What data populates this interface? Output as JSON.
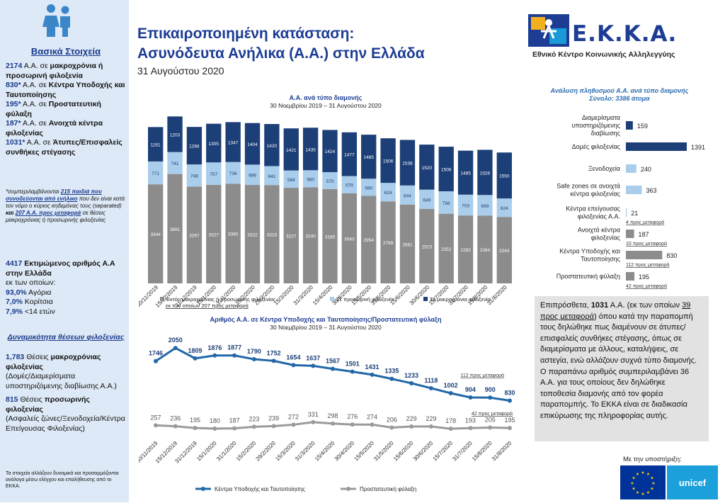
{
  "header": {
    "title_line1": "Επικαιροποιημένη κατάσταση:",
    "title_line2": "Ασυνόδευτα Ανήλικα (Α.Α.) στην Ελλάδα",
    "date": "31 Αυγούστου 2020"
  },
  "logo": {
    "name": "Ε.Κ.Κ.Α.",
    "subtitle": "Εθνικό Κέντρο Κοινωνικής Αλληλεγγύης"
  },
  "sidebar": {
    "heading": "Βασικά Στοιχεία",
    "facts": [
      {
        "num": "2174",
        "text": "Α.Α. σε ",
        "bold": "μακροχρόνια ή προσωρινή φιλοξενία"
      },
      {
        "num": "830*",
        "text": "Α.Α. σε ",
        "bold": "Κέντρα Υποδοχής και Ταυτοποίησης"
      },
      {
        "num": "195*",
        "text": "Α.Α. σε ",
        "bold": "Προστατευτική φύλαξη"
      },
      {
        "num": "187*",
        "text": "Α.Α. σε ",
        "bold": "Ανοιχτά κέντρα φιλοξενίας"
      },
      {
        "num": "1031*",
        "text": "Α.Α. σε ",
        "bold": "Άτυπες/Επισφαλείς συνθήκες στέγασης"
      }
    ],
    "footnote_pre": "*συμπεριλαμβάνονται ",
    "footnote_link1": "215 παιδιά που συνοδεύονται από ενήλικο",
    "footnote_mid": " που δεν είναι κατά τον νόμο ο κύριος κηδεμόνας τους (separated) ",
    "footnote_and": "και",
    "footnote_link2": "207 Α.Α. προς μεταφορά",
    "footnote_post": " σε θέσεις μακροχρόνιας ή προσωρινής φιλοξενίας",
    "estimate_num": "4417",
    "estimate_text": "Εκτιμώμενος αριθμός Α.Α στην Ελλάδα",
    "estimate_sub": "εκ των οποίων:",
    "pct": [
      {
        "num": "93,0%",
        "label": "Αγόρια"
      },
      {
        "num": "7,0%",
        "label": "Κορίτσια"
      },
      {
        "num": "7,9%",
        "label": "<14 ετών"
      }
    ],
    "capacity_heading": "Δυναμικότητα θέσεων φιλοξενίας",
    "cap1_num": "1,783",
    "cap1_text": " Θέσεις ",
    "cap1_bold": "μακροχρόνιας φιλοξενίας",
    "cap1_detail": "(Δομές/Διαμερίσματα υποστηριζόμενης διαβίωσης Α.Α.)",
    "cap2_num": "815",
    "cap2_text": " Θέσεις ",
    "cap2_bold": "προσωρινής φιλοξενίας",
    "cap2_detail": "(Ασφαλείς ζώνες/Ξενοδοχεία/Κέντρα Επείγουσας Φιλοξενίας)",
    "disclaimer": "Τα στοιχεία αλλάζουν δυναμικά και προσαρμόζονται ανάλογα μέσω ελέγχου και επαλήθευσης από το ΕΚΚΑ."
  },
  "infobox": {
    "pre": "Επιπρόσθετα, ",
    "num": "1031",
    "mid": " Α.Α. (εκ των οποίων ",
    "link": "39 προς μεταφορά",
    "post": ") όπου κατά την παραπομπή τους δηλώθηκε πως διαμένουν σε άτυπες/επισφαλείς συνθήκες στέγασης, όπως σε διαμερίσματα με άλλους, καταλήψεις, σε αστεγία, ενώ αλλάζουν συχνά τύπο διαμονής.",
    "para2": "Ο παραπάνω αριθμός συμπεριλαμβάνει 36 Α.Α. για τους οποίους δεν δηλώθηκε τοποθεσία διαμονής από τον φορέα παραπομπής. Το ΕΚΚΑ είναι σε διαδικασία επικύρωσης της πληροφορίας αυτής."
  },
  "support": {
    "label": "Με την υποστήριξη:",
    "unicef": "unicef"
  },
  "chart_data": [
    {
      "type": "bar",
      "stacked": true,
      "title": "Α.Α. ανά τύπο διαμονής",
      "subtitle": "30 Νοεμβρίου 2019 – 31 Αυγούστου 2020",
      "categories": [
        "30/11/2019",
        "15/12/2019",
        "31/12/2019",
        "15/1/2020",
        "31/1/2020",
        "15/2/2020",
        "29/2/2020",
        "15/3/2020",
        "31/3/2020",
        "15/4/2020",
        "30/4/2020",
        "15/5/2020",
        "31/5/2020",
        "15/6/2020",
        "30/6/2020",
        "15/7/2020",
        "31/7/2020",
        "15/8/2020",
        "31/8/2020"
      ],
      "series": [
        {
          "name": "Εκτός μακροχρόνιας ή προσωρινής φιλοξενίας",
          "color": "#8c8c8c",
          "values": [
            3344,
            3691,
            3267,
            3327,
            3360,
            3322,
            3318,
            3227,
            3240,
            3185,
            3043,
            2954,
            2768,
            2661,
            2515,
            2352,
            2292,
            2284,
            2243
          ]
        },
        {
          "name": "Σε προσωρινή φιλοξενία",
          "color": "#a9cdea",
          "values": [
            771,
            741,
            748,
            757,
            736,
            686,
            641,
            584,
            580,
            570,
            579,
            580,
            624,
            644,
            649,
            756,
            703,
            699,
            624
          ]
        },
        {
          "name": "Σε μακροχρόνια φιλοξενία",
          "color": "#1d3f78",
          "values": [
            1161,
            1203,
            1266,
            1305,
            1347,
            1404,
            1420,
            1421,
            1435,
            1424,
            1477,
            1485,
            1506,
            1538,
            1520,
            1506,
            1485,
            1526,
            1550
          ]
        }
      ],
      "legend_note": "εκ των οποίων 207 προς μεταφορά",
      "ylim": [
        0,
        5500
      ]
    },
    {
      "type": "line",
      "title": "Αριθμός Α.Α. σε Κέντρα Υποδοχής και Ταυτοποίησης/Προστατευτική φύλαξη",
      "subtitle": "30 Νοεμβρίου 2019 – 31 Αυγούστου 2020",
      "categories": [
        "30/11/2019",
        "15/12/2019",
        "31/12/2019",
        "15/1/2020",
        "31/1/2020",
        "15/2/2020",
        "29/2/2020",
        "15/3/2020",
        "31/3/2020",
        "15/4/2020",
        "30/4/2020",
        "15/5/2020",
        "31/5/2020",
        "15/6/2020",
        "30/6/2020",
        "15/7/2020",
        "31/7/2020",
        "15/8/2020",
        "31/8/2020"
      ],
      "series": [
        {
          "name": "Κέντρα Υποδοχής και Ταυτοποίησης",
          "color": "#2368a8",
          "values": [
            1746,
            2050,
            1809,
            1876,
            1877,
            1790,
            1752,
            1654,
            1637,
            1567,
            1501,
            1431,
            1335,
            1233,
            1118,
            1002,
            904,
            900,
            830
          ]
        },
        {
          "name": "Προστατευτική φύλαξη",
          "color": "#9a9a9a",
          "values": [
            257,
            236,
            195,
            180,
            187,
            223,
            239,
            272,
            331,
            298,
            276,
            274,
            206,
            229,
            229,
            178,
            193,
            205,
            195
          ]
        }
      ],
      "annotations": [
        "112 προς μεταφορά",
        "42 προς μεταφορά"
      ],
      "ylim": [
        0,
        2300
      ]
    },
    {
      "type": "bar",
      "orientation": "horizontal",
      "title": "Ανάλυση πληθυσμού Α.Α. ανά τύπο διαμονής",
      "subtitle": "Σύνολο: 3386 άτομα",
      "categories": [
        "Διαμερίσματα υποστηριζόμενης διαβίωσης",
        "Δομές φιλοξενίας",
        "Ξενοδοχεία",
        "Safe zones σε ανοιχτά κέντρα φιλοξενίας",
        "Κέντρα επείγουσας φιλοξενίας Α.Α.",
        "Ανοιχτά κέντρα φιλοξενίας",
        "Κέντρα Υποδοχής και Ταυτοποίησης",
        "Προστατευτική φύλαξη"
      ],
      "values": [
        159,
        1391,
        240,
        363,
        21,
        187,
        830,
        195
      ],
      "colors": [
        "#1d3f78",
        "#1d3f78",
        "#a9cdea",
        "#a9cdea",
        "#a9cdea",
        "#8c8c8c",
        "#8c8c8c",
        "#8c8c8c"
      ],
      "notes": [
        "",
        "",
        "",
        "",
        "4 προς μεταφορά",
        "10 προς μεταφορά",
        "112 προς μεταφορά",
        "42 προς μεταφορά"
      ]
    }
  ]
}
